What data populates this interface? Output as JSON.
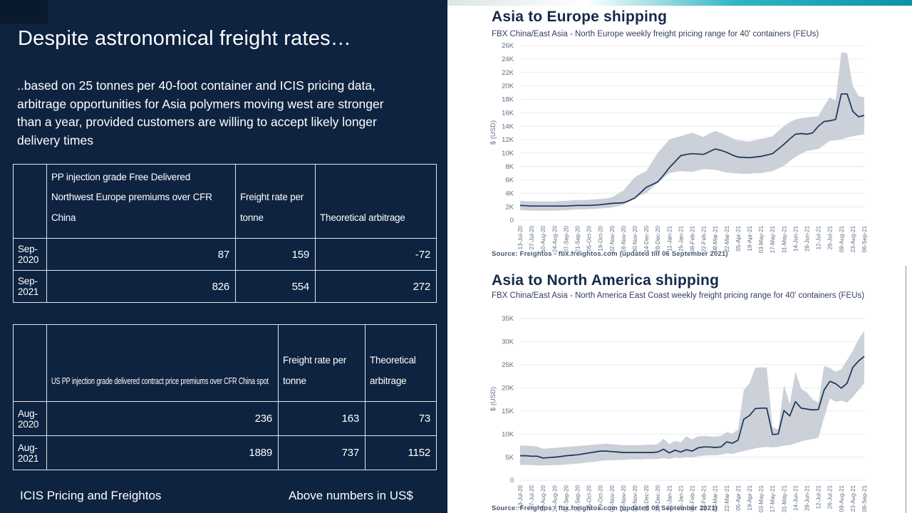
{
  "slide": {
    "title": "Despite astronomical freight rates…",
    "body": "..based on 25 tonnes per 40-foot container and ICIS pricing data, arbitrage opportunities for Asia polymers moving west are stronger  than a year, provided customers are willing to accept likely longer delivery times",
    "footer_left": "ICIS Pricing and Freightos",
    "footer_right": "Above numbers in US$"
  },
  "tables": [
    {
      "name": "europe-arbitrage-table",
      "columns": [
        "",
        "PP injection grade Free Delivered Northwest Europe premiums over CFR China",
        "Freight rate per tonne",
        "Theoretical arbitrage"
      ],
      "rows": [
        [
          "Sep-2020",
          "87",
          "159",
          "-72"
        ],
        [
          "Sep-2021",
          "826",
          "554",
          "272"
        ]
      ]
    },
    {
      "name": "us-arbitrage-table",
      "columns": [
        "",
        "US PP injection grade delivered contract price premiums over CFR China spot",
        "Freight rate per tonne",
        "Theoretical arbitrage"
      ],
      "rows": [
        [
          "Aug-2020",
          "236",
          "163",
          "73"
        ],
        [
          "Aug-2021",
          "1889",
          "737",
          "1152"
        ]
      ]
    }
  ],
  "colors": {
    "navy_bg": "#0E2340",
    "navy_corner": "#09192E",
    "chart_line": "#1C3557",
    "band_fill": "#CBD0D9",
    "grid": "#E8EAED",
    "axis_text": "#5F6E84",
    "chart_title": "#15294B",
    "teal_accent": "#0C93A6",
    "table_border": "#E3E6EA"
  },
  "chart_data": [
    {
      "type": "area",
      "title": "Asia to Europe shipping",
      "subtitle": "FBX China/East Asia - North Europe weekly freight pricing range for 40' containers (FEUs)",
      "source": "Source: Freightos - fbx.freightos.com (updated till 06 September 2021)",
      "ylabel": "$ (USD)",
      "ylim": [
        0,
        26000
      ],
      "grid": true,
      "legend": "none",
      "y_ticks": [
        "0",
        "2K",
        "4K",
        "6K",
        "8K",
        "10K",
        "12K",
        "14K",
        "16K",
        "18K",
        "20K",
        "22K",
        "24K",
        "26K"
      ],
      "x_tick_labels": [
        "13-Jul-20",
        "27-Jul-20",
        "10-Aug-20",
        "24-Aug-20",
        "07-Sep-20",
        "21-Sep-20",
        "05-Oct-20",
        "19-Oct-20",
        "02-Nov-20",
        "16-Nov-20",
        "30-Nov-20",
        "14-Dec-20",
        "28-Dec-20",
        "11-Jan-21",
        "25-Jan-21",
        "08-Feb-21",
        "22-Feb-21",
        "08-Mar-21",
        "22-Mar-21",
        "05-Apr-21",
        "19-Apr-21",
        "03-May-21",
        "17-May-21",
        "31-May-21",
        "14-Jun-21",
        "28-Jun-21",
        "12-Jul-21",
        "26-Jul-21",
        "09-Aug-21",
        "23-Aug-21",
        "06-Sep-21"
      ],
      "series": [
        {
          "name": "weekly freight rate",
          "values": [
            2200,
            2150,
            2100,
            2100,
            2100,
            2100,
            2100,
            2100,
            2100,
            2150,
            2200,
            2200,
            2200,
            2250,
            2300,
            2400,
            2500,
            2550,
            2600,
            2900,
            3300,
            4100,
            4900,
            5300,
            5700,
            6700,
            7800,
            8700,
            9600,
            9800,
            9900,
            9850,
            9800,
            10200,
            10600,
            10400,
            10100,
            9700,
            9400,
            9350,
            9300,
            9400,
            9500,
            9700,
            9900,
            10600,
            11300,
            12100,
            12800,
            12900,
            12800,
            13000,
            14000,
            14700,
            14800,
            15000,
            18800,
            18800,
            16200,
            15400,
            15600
          ]
        },
        {
          "name": "range low",
          "values": [
            1500,
            1450,
            1400,
            1400,
            1400,
            1400,
            1400,
            1450,
            1500,
            1550,
            1600,
            1600,
            1650,
            1700,
            1750,
            1800,
            1900,
            2100,
            2300,
            2800,
            3300,
            3700,
            4000,
            4800,
            5600,
            6300,
            7000,
            7200,
            7300,
            7250,
            7200,
            7400,
            7600,
            7550,
            7500,
            7300,
            7100,
            7000,
            6950,
            6900,
            6900,
            7000,
            7000,
            7150,
            7300,
            7700,
            8100,
            8800,
            9400,
            9900,
            10300,
            10450,
            10600,
            11200,
            11800,
            11900,
            12000,
            12300,
            12500,
            12650,
            12800
          ]
        },
        {
          "name": "range high",
          "values": [
            2900,
            2850,
            2800,
            2800,
            2800,
            2800,
            2800,
            2850,
            2900,
            2950,
            3000,
            3000,
            3050,
            3100,
            3150,
            3250,
            3400,
            3900,
            4400,
            5400,
            6400,
            6900,
            7300,
            8700,
            10000,
            11000,
            12000,
            12300,
            12500,
            12800,
            13000,
            12700,
            12400,
            12900,
            13300,
            13000,
            12600,
            12200,
            11900,
            11800,
            11700,
            11900,
            12100,
            12300,
            12500,
            13300,
            14000,
            14600,
            15000,
            15200,
            15300,
            15400,
            15500,
            17000,
            18300,
            17800,
            25000,
            24900,
            20000,
            18500,
            18300
          ]
        }
      ]
    },
    {
      "type": "area",
      "title": "Asia to North America shipping",
      "subtitle": "FBX China/East Asia - North America East Coast weekly freight pricing range for 40' containers (FEUs)",
      "source": "Source: Freightos - fbx.freightos.com (updated 06 September 2021)",
      "ylabel": "$ (USD)",
      "ylim": [
        0,
        35000
      ],
      "grid": true,
      "legend": "none",
      "y_ticks": [
        "0",
        "5K",
        "10K",
        "15K",
        "20K",
        "25K",
        "30K",
        "35K"
      ],
      "x_tick_labels": [
        "13-Jul-20",
        "27-Jul-20",
        "10-Aug-20",
        "24-Aug-20",
        "07-Sep-20",
        "21-Sep-20",
        "05-Oct-20",
        "19-Oct-20",
        "02-Nov-20",
        "16-Nov-20",
        "30-Nov-20",
        "14-Dec-20",
        "28-Dec-20",
        "11-Jan-21",
        "25-Jan-21",
        "08-Feb-21",
        "22-Feb-21",
        "08-Mar-21",
        "22-Mar-21",
        "05-Apr-21",
        "19-Apr-21",
        "03-May-21",
        "17-May-21",
        "31-May-21",
        "14-Jun-21",
        "28-Jun-21",
        "12-Jul-21",
        "26-Jul-21",
        "09-Aug-21",
        "23-Aug-21",
        "06-Sep-21"
      ],
      "series": [
        {
          "name": "weekly freight rate",
          "values": [
            5300,
            5300,
            5200,
            5200,
            4800,
            4900,
            5000,
            5100,
            5300,
            5400,
            5500,
            5700,
            5900,
            6100,
            6300,
            6300,
            6200,
            6100,
            6000,
            6000,
            6000,
            6000,
            6000,
            6000,
            6100,
            6700,
            5900,
            6500,
            6100,
            6600,
            6300,
            7000,
            7200,
            7200,
            7100,
            7200,
            8300,
            8000,
            8700,
            13200,
            14000,
            15500,
            15600,
            15600,
            9900,
            10000,
            15100,
            13900,
            17000,
            15600,
            15400,
            15200,
            15300,
            19500,
            21400,
            20900,
            19900,
            21000,
            24400,
            25800,
            26800
          ]
        },
        {
          "name": "range low",
          "values": [
            3300,
            3300,
            3300,
            3200,
            3200,
            3200,
            3300,
            3300,
            3400,
            3500,
            3600,
            3700,
            3900,
            4000,
            4200,
            4300,
            4300,
            4400,
            4400,
            4500,
            4500,
            4500,
            4600,
            4600,
            4600,
            4800,
            4600,
            4900,
            4800,
            5000,
            4900,
            5200,
            5300,
            5400,
            5400,
            5500,
            5800,
            5700,
            6000,
            6300,
            6600,
            6900,
            7100,
            7200,
            7100,
            7200,
            7500,
            7600,
            8000,
            8400,
            8700,
            8900,
            9200,
            13500,
            17700,
            17000,
            17200,
            16800,
            18000,
            19500,
            21000
          ]
        },
        {
          "name": "range high",
          "values": [
            7500,
            7500,
            7400,
            7300,
            6800,
            6900,
            7000,
            7100,
            7200,
            7300,
            7400,
            7500,
            7600,
            7700,
            7800,
            7900,
            7800,
            7700,
            7600,
            7600,
            7600,
            7600,
            7700,
            7700,
            7800,
            9000,
            7800,
            8500,
            8200,
            9500,
            8800,
            9500,
            9600,
            9500,
            9400,
            9600,
            10400,
            10100,
            11000,
            19500,
            21000,
            24400,
            24400,
            24400,
            11500,
            11000,
            20600,
            16500,
            23500,
            19800,
            19000,
            17500,
            16800,
            24700,
            24300,
            23500,
            24000,
            26000,
            28000,
            30500,
            32300
          ]
        }
      ]
    }
  ]
}
